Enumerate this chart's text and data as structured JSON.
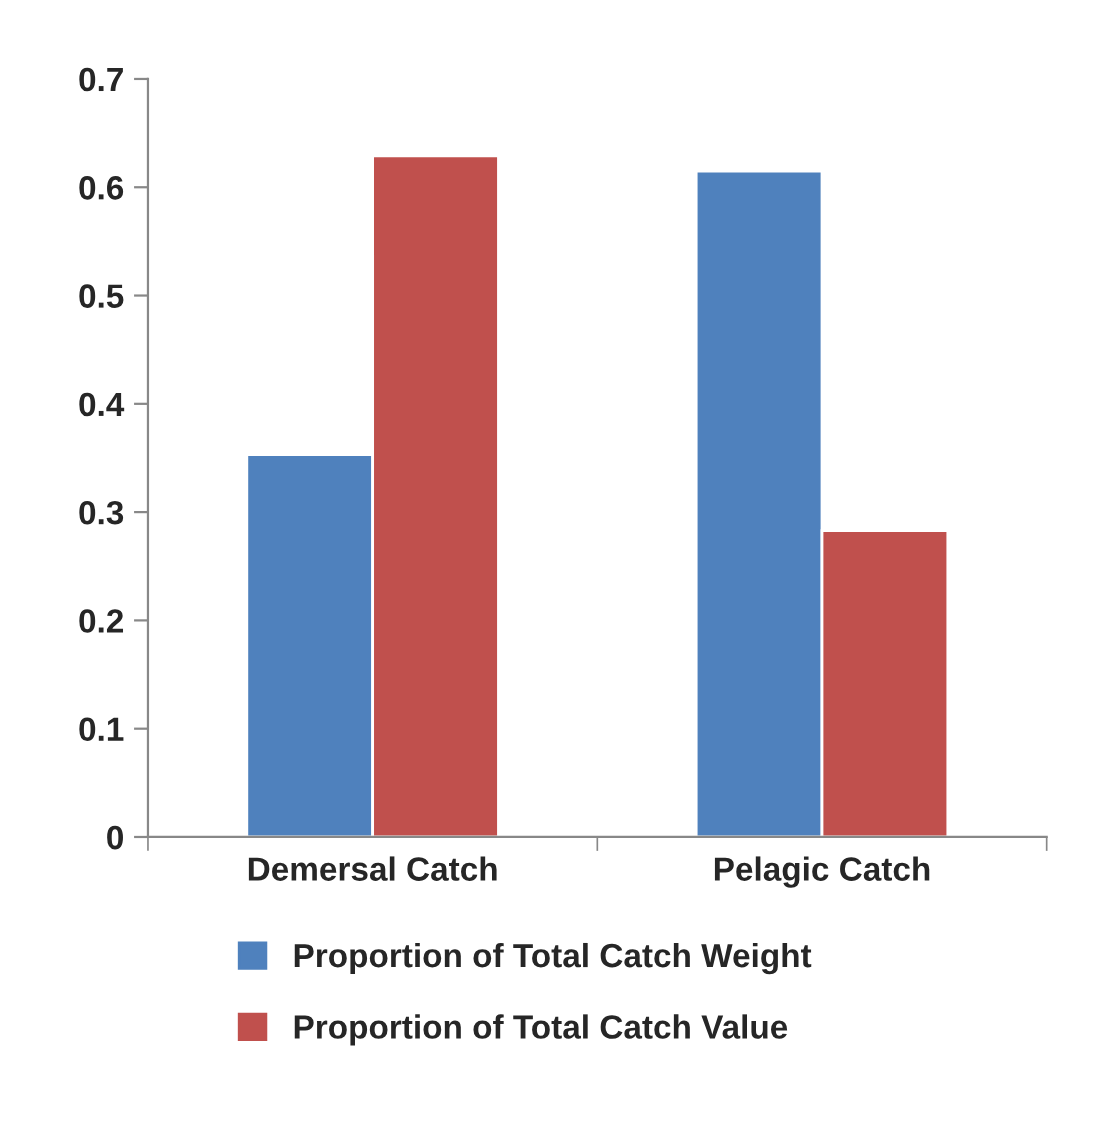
{
  "chart_data": {
    "type": "bar",
    "categories": [
      "Demersal Catch",
      "Pelagic Catch"
    ],
    "series": [
      {
        "name": "Proportion of Total Catch Weight",
        "color": "#4f81bd",
        "values": [
          0.353,
          0.615
        ]
      },
      {
        "name": "Proportion of Total Catch Value",
        "color": "#c0504d",
        "values": [
          0.629,
          0.283
        ]
      }
    ],
    "ylim": [
      0,
      0.7
    ],
    "yticks": [
      0,
      0.1,
      0.2,
      0.3,
      0.4,
      0.5,
      0.6,
      0.7
    ],
    "grid": false,
    "legend": "bottom"
  }
}
